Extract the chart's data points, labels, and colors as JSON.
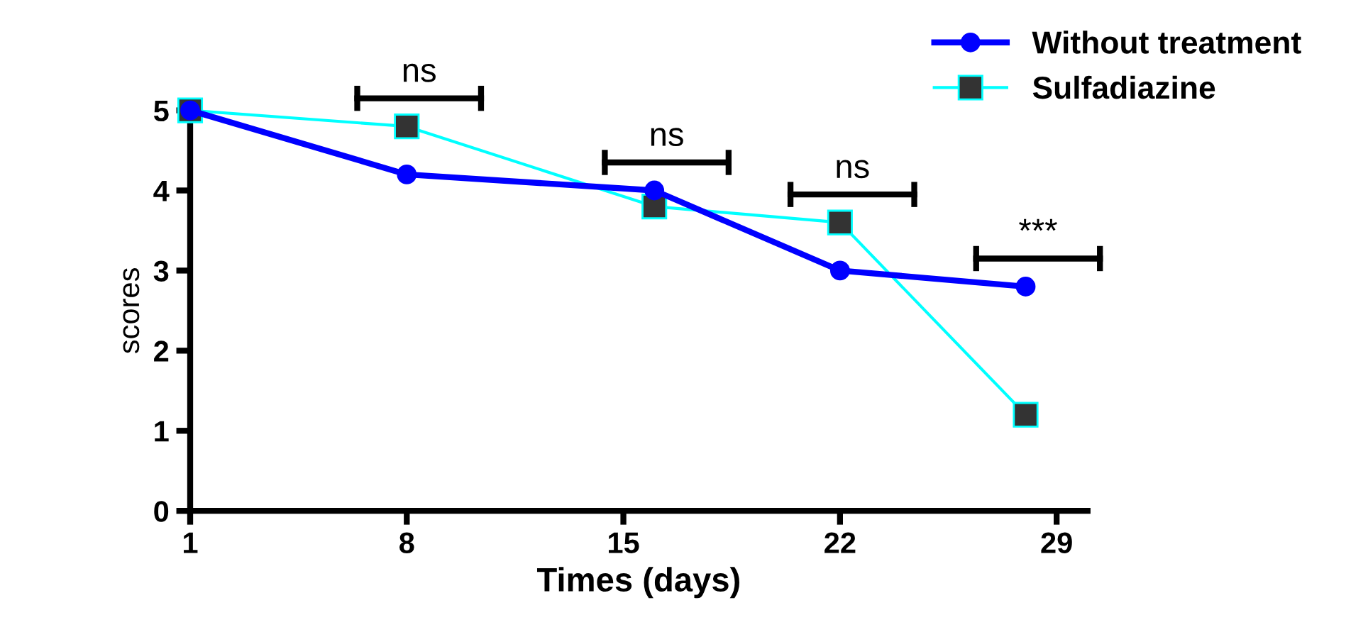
{
  "chart_data": {
    "type": "line",
    "xlabel": "Times (days)",
    "ylabel": "scores",
    "x": [
      1,
      8,
      16,
      22,
      28
    ],
    "series": [
      {
        "name": "Without treatment",
        "color": "#0000ff",
        "marker": "circle",
        "values": [
          5,
          4.2,
          4.0,
          3.0,
          2.8
        ]
      },
      {
        "name": "Sulfadiazine",
        "color": "#00ffff",
        "marker": "square",
        "values": [
          5,
          4.8,
          3.8,
          3.6,
          1.2
        ]
      }
    ],
    "xlim": [
      1,
      30
    ],
    "xticks": [
      1,
      8,
      15,
      22,
      29
    ],
    "ylim": [
      0,
      5
    ],
    "yticks": [
      0,
      1,
      2,
      3,
      4,
      5
    ],
    "grid": false,
    "legend": "top right",
    "annotations": [
      "ns",
      "ns",
      "ns",
      "***"
    ]
  }
}
